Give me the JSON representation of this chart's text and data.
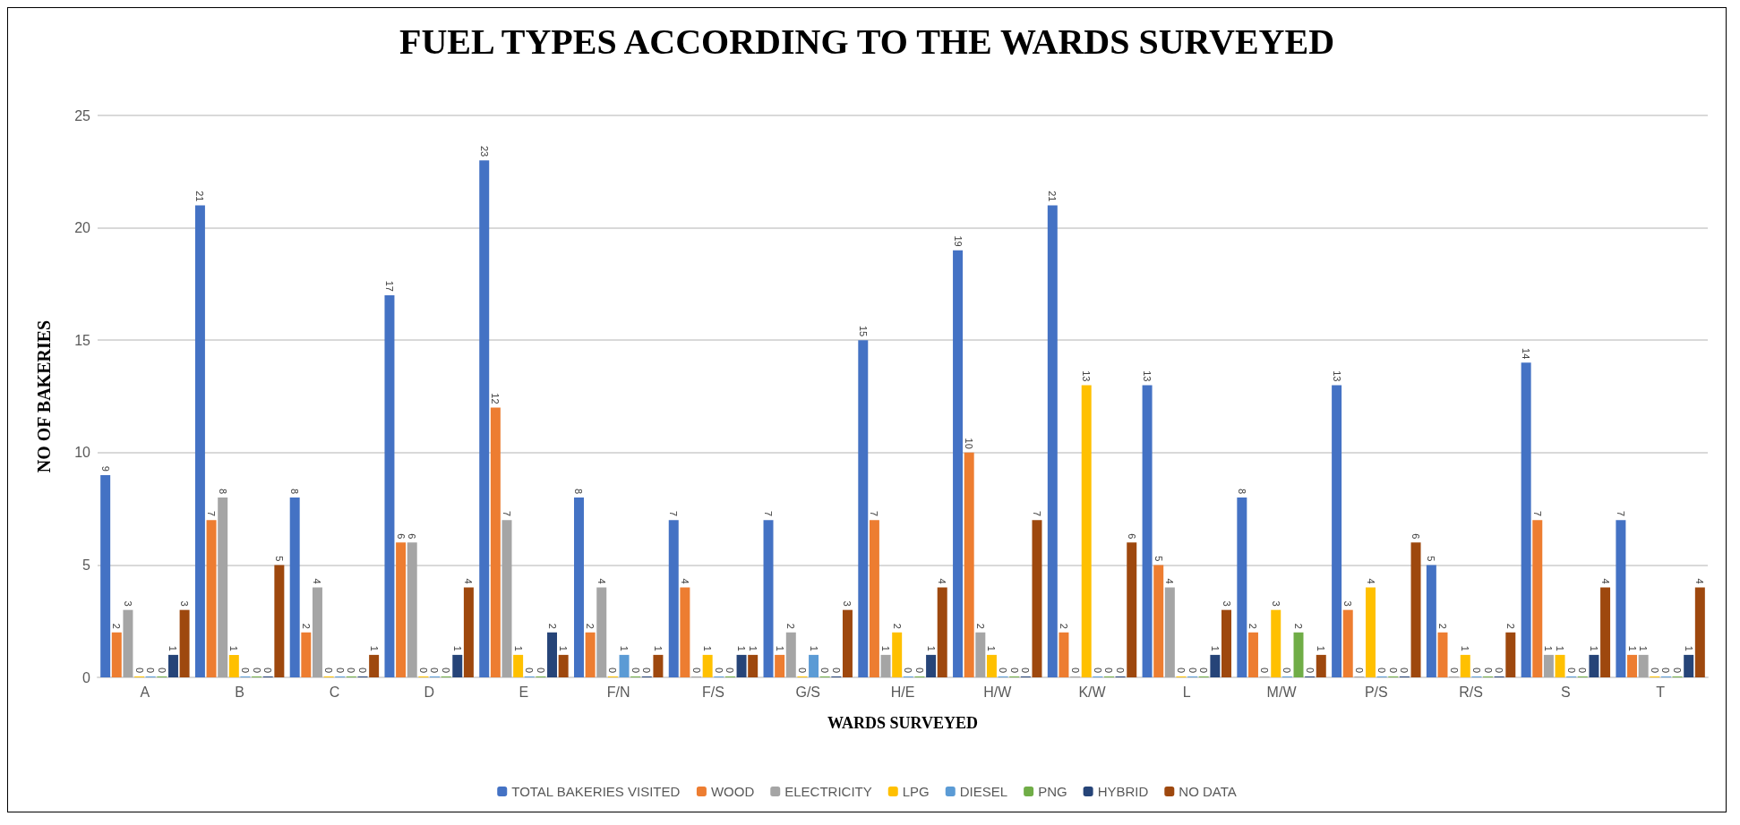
{
  "chart_data": {
    "type": "bar",
    "title": "FUEL TYPES ACCORDING TO THE WARDS SURVEYED",
    "xlabel": "WARDS SURVEYED",
    "ylabel": "NO OF BAKERIES",
    "categories": [
      "A",
      "B",
      "C",
      "D",
      "E",
      "F/N",
      "F/S",
      "G/S",
      "H/E",
      "H/W",
      "K/W",
      "L",
      "M/W",
      "P/S",
      "R/S",
      "S",
      "T"
    ],
    "series": [
      {
        "name": "TOTAL BAKERIES VISITED",
        "color": "#4472c4",
        "values": [
          9,
          21,
          8,
          17,
          23,
          8,
          7,
          7,
          15,
          19,
          21,
          13,
          8,
          13,
          5,
          14,
          7
        ]
      },
      {
        "name": "WOOD",
        "color": "#ed7d31",
        "values": [
          2,
          7,
          2,
          6,
          12,
          2,
          4,
          1,
          7,
          10,
          2,
          5,
          2,
          3,
          2,
          7,
          1
        ]
      },
      {
        "name": "ELECTRICITY",
        "color": "#a5a5a5",
        "values": [
          3,
          8,
          4,
          6,
          7,
          4,
          0,
          2,
          1,
          2,
          0,
          4,
          0,
          0,
          0,
          1,
          1
        ]
      },
      {
        "name": "LPG",
        "color": "#ffc000",
        "values": [
          0,
          1,
          0,
          0,
          1,
          0,
          1,
          0,
          2,
          1,
          13,
          0,
          3,
          4,
          1,
          1,
          0
        ]
      },
      {
        "name": "DIESEL",
        "color": "#5b9bd5",
        "values": [
          0,
          0,
          0,
          0,
          0,
          1,
          0,
          1,
          0,
          0,
          0,
          0,
          0,
          0,
          0,
          0,
          0
        ]
      },
      {
        "name": "PNG",
        "color": "#70ad47",
        "values": [
          0,
          0,
          0,
          0,
          0,
          0,
          0,
          0,
          0,
          0,
          0,
          0,
          2,
          0,
          0,
          0,
          0
        ]
      },
      {
        "name": "HYBRID",
        "color": "#264478",
        "values": [
          1,
          0,
          0,
          1,
          2,
          0,
          1,
          0,
          1,
          0,
          0,
          1,
          0,
          0,
          0,
          1,
          1
        ]
      },
      {
        "name": "NO DATA",
        "color": "#9e480e",
        "values": [
          3,
          5,
          1,
          4,
          1,
          1,
          1,
          3,
          4,
          7,
          6,
          3,
          1,
          6,
          2,
          4,
          4
        ]
      }
    ],
    "ylim": [
      0,
      25
    ],
    "yticks": [
      0,
      5,
      10,
      15,
      20,
      25
    ],
    "grid": "y",
    "legend": "bottom",
    "data_labels": true
  }
}
